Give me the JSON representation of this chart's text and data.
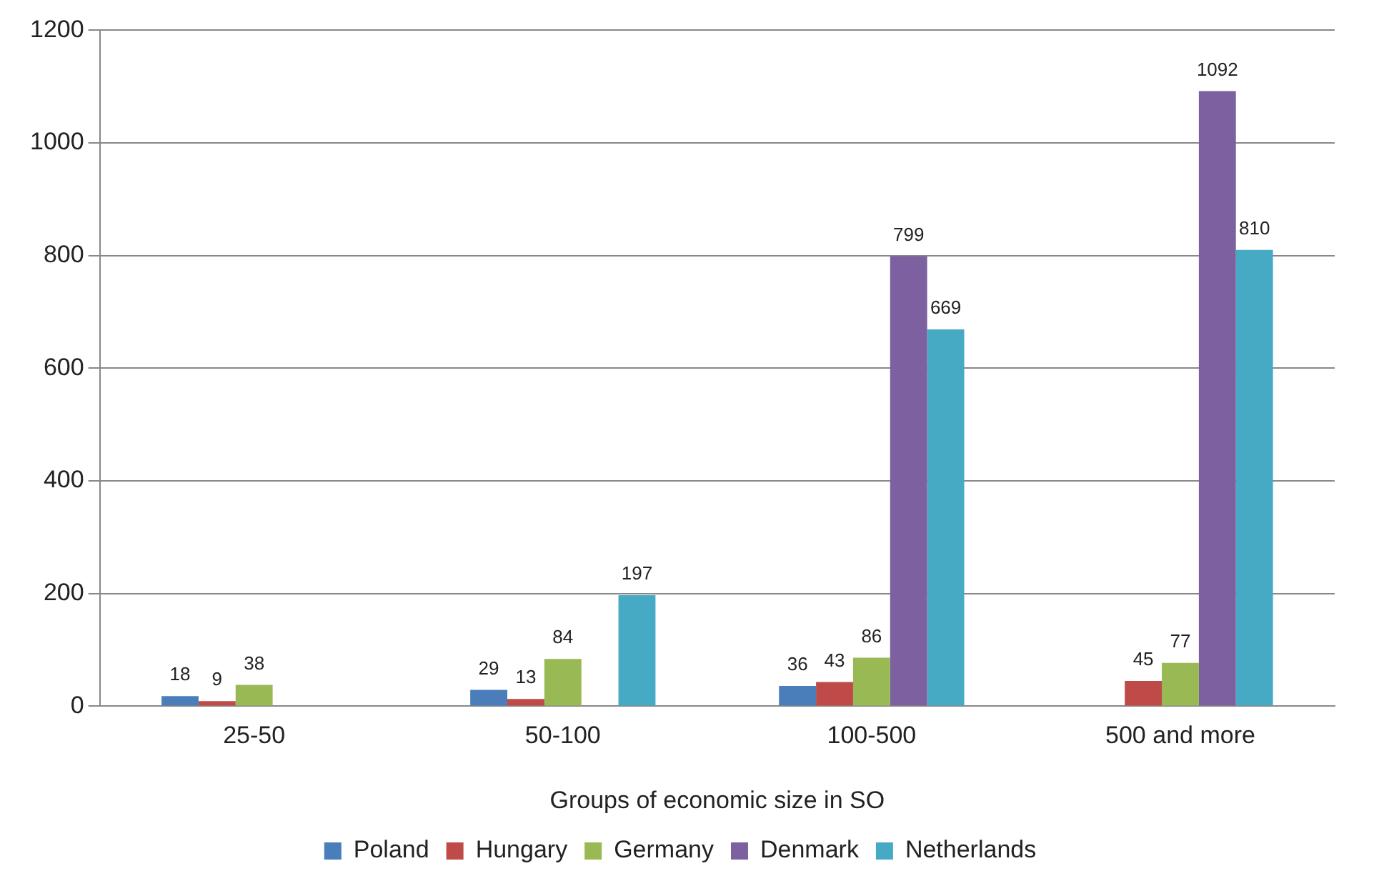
{
  "chart_data": {
    "type": "bar",
    "xlabel": "Groups of economic size in SO",
    "categories": [
      "25-50",
      "50-100",
      "100-500",
      "500 and more"
    ],
    "series": [
      {
        "name": "Poland",
        "color": "#4a7ebb",
        "values": [
          18,
          29,
          36,
          null
        ]
      },
      {
        "name": "Hungary",
        "color": "#be4b48",
        "values": [
          9,
          13,
          43,
          45
        ]
      },
      {
        "name": "Germany",
        "color": "#98b954",
        "values": [
          38,
          84,
          86,
          77
        ]
      },
      {
        "name": "Denmark",
        "color": "#7d60a0",
        "values": [
          null,
          null,
          799,
          1092
        ]
      },
      {
        "name": "Netherlands",
        "color": "#46aac5",
        "values": [
          null,
          197,
          669,
          810
        ]
      }
    ],
    "ylim": [
      0,
      1200
    ],
    "yticks": [
      0,
      200,
      400,
      600,
      800,
      1000,
      1200
    ],
    "grid": "y",
    "legend": "bottom",
    "data_labels": true
  }
}
